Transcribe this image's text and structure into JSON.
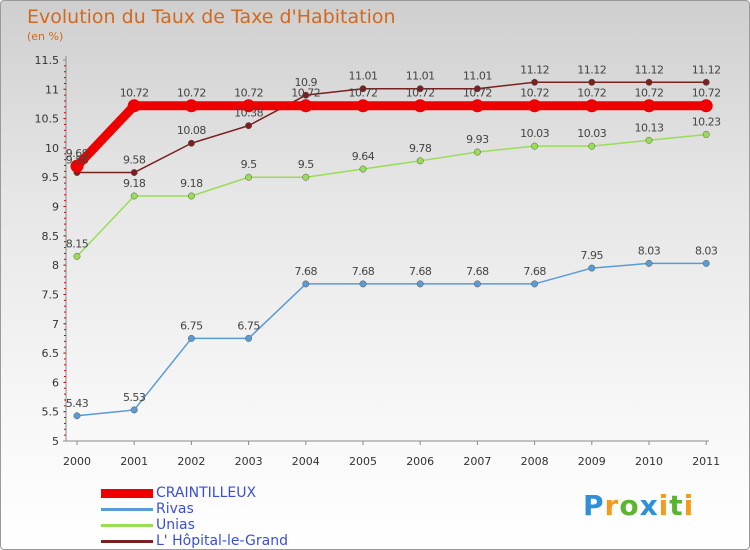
{
  "chart_data": {
    "type": "line",
    "title": "Evolution du Taux de Taxe d'Habitation",
    "subtitle": "(en %)",
    "x": [
      "2000",
      "2001",
      "2002",
      "2003",
      "2004",
      "2005",
      "2006",
      "2007",
      "2008",
      "2009",
      "2010",
      "2011"
    ],
    "ylim": [
      5,
      11.5
    ],
    "yticks": [
      "5",
      "5.5",
      "6",
      "6.5",
      "7",
      "7.5",
      "8",
      "8.5",
      "9",
      "9.5",
      "10",
      "10.5",
      "11",
      "11.5"
    ],
    "grid": false,
    "legend_position": "bottom-left",
    "series": [
      {
        "name": "CRAINTILLEUX",
        "color": "#ee0000",
        "values": [
          9.69,
          10.72,
          10.72,
          10.72,
          10.72,
          10.72,
          10.72,
          10.72,
          10.72,
          10.72,
          10.72,
          10.72
        ],
        "labels": [
          "9.69",
          "10.72",
          "10.72",
          "10.72",
          "10.72",
          "10.72",
          "10.72",
          "10.72",
          "10.72",
          "10.72",
          "10.72",
          "10.72"
        ]
      },
      {
        "name": "Rivas",
        "color": "#5b9bd5",
        "values": [
          5.43,
          5.53,
          6.75,
          6.75,
          7.68,
          7.68,
          7.68,
          7.68,
          7.68,
          7.95,
          8.03,
          8.03
        ],
        "labels": [
          "5.43",
          "5.53",
          "6.75",
          "6.75",
          "7.68",
          "7.68",
          "7.68",
          "7.68",
          "7.68",
          "7.95",
          "8.03",
          "8.03"
        ]
      },
      {
        "name": "Unias",
        "color": "#99dd55",
        "values": [
          8.15,
          9.18,
          9.18,
          9.5,
          9.5,
          9.64,
          9.78,
          9.93,
          10.03,
          10.03,
          10.13,
          10.23
        ],
        "labels": [
          "8.15",
          "9.18",
          "9.18",
          "9.5",
          "9.5",
          "9.64",
          "9.78",
          "9.93",
          "10.03",
          "10.03",
          "10.13",
          "10.23"
        ]
      },
      {
        "name": "L' Hôpital-le-Grand",
        "color": "#7a2020",
        "values": [
          9.58,
          9.58,
          10.08,
          10.38,
          10.9,
          11.01,
          11.01,
          11.01,
          11.12,
          11.12,
          11.12,
          11.12
        ],
        "labels": [
          "9.58",
          "9.58",
          "10.08",
          "10.38",
          "10.9",
          "11.01",
          "11.01",
          "11.01",
          "11.12",
          "11.12",
          "11.12",
          "11.12"
        ]
      }
    ]
  },
  "logo": {
    "letters": [
      "P",
      "r",
      "o",
      "x",
      "i",
      "t",
      "i"
    ],
    "colors": [
      "#2f8fd8",
      "#f29b1d",
      "#5bb531",
      "#2f8fd8",
      "#f29b1d",
      "#5bb531",
      "#f29b1d"
    ]
  }
}
